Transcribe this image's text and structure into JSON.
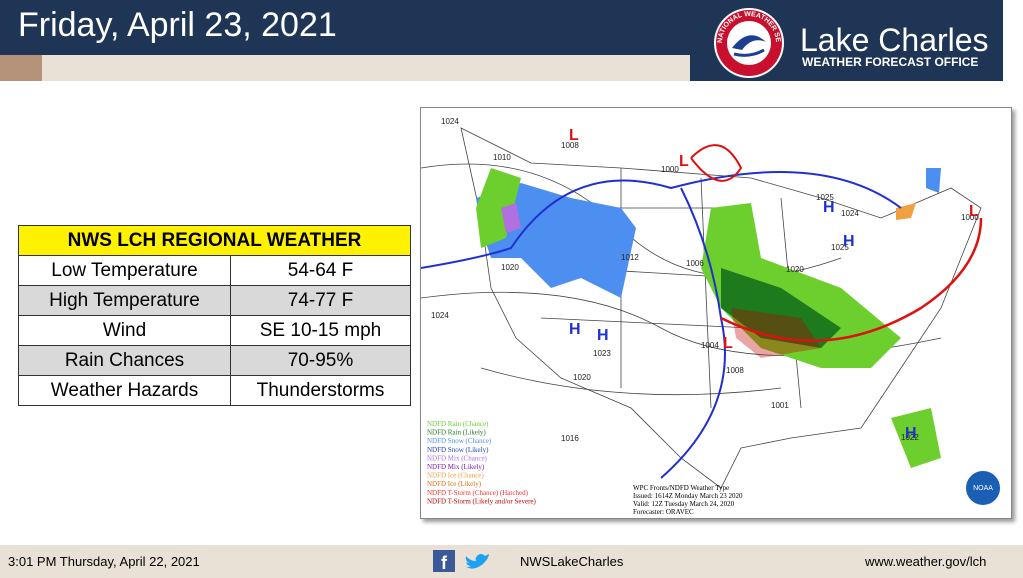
{
  "header": {
    "title": "Friday, April 23, 2021",
    "office_name": "Lake Charles",
    "office_subtitle": "WEATHER FORECAST OFFICE",
    "logo_text": "NATIONAL WEATHER SERVICE"
  },
  "table": {
    "title": "NWS LCH REGIONAL WEATHER",
    "rows": [
      [
        "Low Temperature",
        "54-64 F"
      ],
      [
        "High Temperature",
        "74-77 F"
      ],
      [
        "Wind",
        "SE 10-15 mph"
      ],
      [
        "Rain Chances",
        "70-95%"
      ],
      [
        "Weather Hazards",
        "Thunderstorms"
      ]
    ]
  },
  "map": {
    "legend": [
      {
        "label": "NDFD Rain (Chance)",
        "color": "#6ccf2e"
      },
      {
        "label": "NDFD Rain (Likely)",
        "color": "#1d7a1d"
      },
      {
        "label": "NDFD Snow (Chance)",
        "color": "#4d8ff0"
      },
      {
        "label": "NDFD Snow (Likely)",
        "color": "#1f46c0"
      },
      {
        "label": "NDFD Mix (Chance)",
        "color": "#b070e0"
      },
      {
        "label": "NDFD Mix (Likely)",
        "color": "#7a1fa0"
      },
      {
        "label": "NDFD Ice (Chance)",
        "color": "#f0a040"
      },
      {
        "label": "NDFD Ice (Likely)",
        "color": "#e07010"
      },
      {
        "label": "NDFD T-Storm (Chance) (Hatched)",
        "color": "#ff3030"
      },
      {
        "label": "NDFD T-Storm (Likely and/or Severe)",
        "color": "#c00000"
      }
    ],
    "caption": [
      "WPC Fronts/NDFD Weather Type",
      "Issued: 1614Z Monday March 23 2020",
      "Valid: 12Z Tuesday March 24, 2020",
      "Forecaster: ORAVEC"
    ],
    "pressure_labels": [
      "1024",
      "1008",
      "1000",
      "1010",
      "1020",
      "1012",
      "1006",
      "1024",
      "1023",
      "1020",
      "1016",
      "1004",
      "1008",
      "1001",
      "1025",
      "1024",
      "1025",
      "1020",
      "1000",
      "1022"
    ],
    "centers": [
      "L",
      "L",
      "L",
      "H",
      "H",
      "H",
      "H",
      "H",
      "L"
    ],
    "logo_text": "NOAA"
  },
  "footer": {
    "timestamp": "3:01 PM Thursday, April 22, 2021",
    "social_handle": "NWSLakeCharles",
    "website": "www.weather.gov/lch"
  }
}
